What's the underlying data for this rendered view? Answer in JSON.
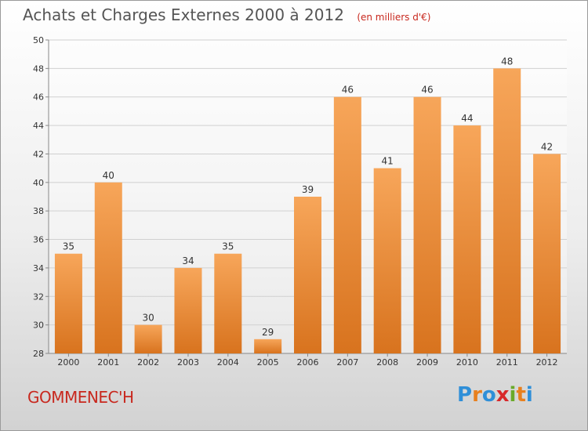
{
  "title": "Achats et Charges Externes 2000 à 2012",
  "subtitle": "(en milliers d'€)",
  "commune": "GOMMENEC'H",
  "logo": {
    "text": "Proxiti",
    "letters": [
      {
        "ch": "P",
        "color": "#2f8fd8"
      },
      {
        "ch": "r",
        "color": "#e8801e"
      },
      {
        "ch": "o",
        "color": "#2f8fd8"
      },
      {
        "ch": "x",
        "color": "#d8282a"
      },
      {
        "ch": "i",
        "color": "#6aaa2a"
      },
      {
        "ch": "t",
        "color": "#e8801e"
      },
      {
        "ch": "i",
        "color": "#2f8fd8"
      }
    ]
  },
  "colors": {
    "bar_top": "#f7a65a",
    "bar_bottom": "#d8731e",
    "grid": "#d0d0d0",
    "axis_text": "#333333"
  },
  "chart_data": {
    "type": "bar",
    "categories": [
      "2000",
      "2001",
      "2002",
      "2003",
      "2004",
      "2005",
      "2006",
      "2007",
      "2008",
      "2009",
      "2010",
      "2011",
      "2012"
    ],
    "values": [
      35,
      40,
      30,
      34,
      35,
      29,
      39,
      46,
      41,
      46,
      44,
      48,
      42
    ],
    "ylim": [
      28,
      50
    ],
    "yticks": [
      28,
      30,
      32,
      34,
      36,
      38,
      40,
      42,
      44,
      46,
      48,
      50
    ],
    "grid": true,
    "legend": "none"
  }
}
